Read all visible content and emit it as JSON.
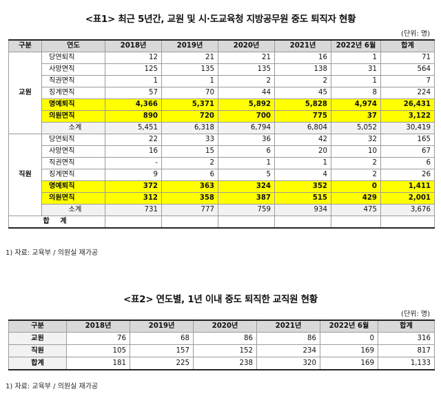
{
  "table1": {
    "title": "<표1> 최근 5년간, 교원 및 시·도교육청 지방공무원 중도 퇴직자 현황",
    "unit": "(단위: 명)",
    "headers": [
      "구분",
      "연도",
      "2018년",
      "2019년",
      "2020년",
      "2021년",
      "2022년 6월",
      "합계"
    ],
    "groups": [
      {
        "name": "교원",
        "rows": [
          {
            "label": "당연퇴직",
            "values": [
              "12",
              "21",
              "21",
              "16",
              "1",
              "71"
            ]
          },
          {
            "label": "사망면직",
            "values": [
              "125",
              "135",
              "135",
              "138",
              "31",
              "564"
            ]
          },
          {
            "label": "직권면직",
            "values": [
              "1",
              "1",
              "2",
              "2",
              "1",
              "7"
            ]
          },
          {
            "label": "징계면직",
            "values": [
              "57",
              "70",
              "44",
              "45",
              "8",
              "224"
            ]
          },
          {
            "label": "명예퇴직",
            "values": [
              "4,366",
              "5,371",
              "5,892",
              "5,828",
              "4,974",
              "26,431"
            ]
          },
          {
            "label": "의원면직",
            "values": [
              "890",
              "720",
              "700",
              "775",
              "37",
              "3,122"
            ]
          },
          {
            "label": "소계",
            "values": [
              "5,451",
              "6,318",
              "6,794",
              "6,804",
              "5,052",
              "30,419"
            ]
          }
        ]
      },
      {
        "name": "직원",
        "rows": [
          {
            "label": "당연퇴직",
            "values": [
              "22",
              "33",
              "36",
              "42",
              "32",
              "165"
            ]
          },
          {
            "label": "사망면직",
            "values": [
              "16",
              "15",
              "6",
              "20",
              "10",
              "67"
            ]
          },
          {
            "label": "직권면직",
            "values": [
              "-",
              "2",
              "1",
              "1",
              "2",
              "6"
            ]
          },
          {
            "label": "징계면직",
            "values": [
              "9",
              "6",
              "5",
              "4",
              "2",
              "26"
            ]
          },
          {
            "label": "명예퇴직",
            "values": [
              "372",
              "363",
              "324",
              "352",
              "0",
              "1,411"
            ]
          },
          {
            "label": "의원면직",
            "values": [
              "312",
              "358",
              "387",
              "515",
              "429",
              "2,001"
            ]
          },
          {
            "label": "소계",
            "values": [
              "731",
              "777",
              "759",
              "934",
              "475",
              "3,676"
            ]
          }
        ]
      }
    ],
    "total_label": "합 계",
    "note": "1) 자료: 교육부 / 의원실 재가공"
  },
  "table2": {
    "title": "<표2> 연도별, 1년 이내 중도 퇴직한 교직원 현황",
    "unit": "(단위: 명)",
    "headers": [
      "구분",
      "2018년",
      "2019년",
      "2020년",
      "2021년",
      "2022년 6월",
      "합계"
    ],
    "rows": [
      {
        "label": "교원",
        "values": [
          "76",
          "68",
          "86",
          "86",
          "0",
          "316"
        ]
      },
      {
        "label": "직원",
        "values": [
          "105",
          "157",
          "152",
          "234",
          "169",
          "817"
        ]
      },
      {
        "label": "합계",
        "values": [
          "181",
          "225",
          "238",
          "320",
          "169",
          "1,133"
        ]
      }
    ],
    "note": "1) 자료: 교육부 / 의원실 재가공"
  }
}
